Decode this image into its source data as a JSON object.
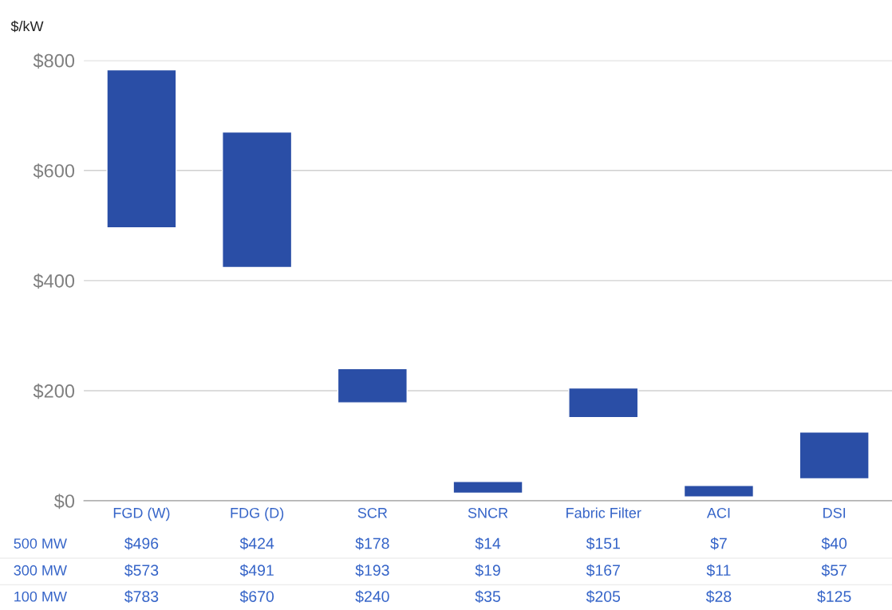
{
  "chart_data": {
    "type": "bar",
    "ylabel": "$/kW",
    "categories": [
      "FGD (W)",
      "FDG (D)",
      "SCR",
      "SNCR",
      "Fabric Filter",
      "ACI",
      "DSI"
    ],
    "base": [
      496,
      424,
      178,
      14,
      151,
      7,
      40
    ],
    "values": [
      287,
      246,
      62,
      21,
      54,
      21,
      85
    ],
    "color": "#2a4ea6",
    "ylim": [
      0,
      800
    ],
    "yticks": [
      {
        "value": 0,
        "label": "$0"
      },
      {
        "value": 200,
        "label": "$200"
      },
      {
        "value": 400,
        "label": "$400"
      },
      {
        "value": 600,
        "label": "$600"
      },
      {
        "value": 800,
        "label": "$800"
      }
    ],
    "grid": "y",
    "annotations": [
      "500 MW",
      "300 MW",
      "100 MW",
      "$496",
      "$424",
      "$178",
      "$14",
      "$151",
      "$7",
      "$40",
      "$573",
      "$491",
      "$193",
      "$19",
      "$167",
      "$11",
      "$57",
      "$783",
      "$670",
      "$240",
      "$35",
      "$205",
      "$28",
      "$125"
    ]
  }
}
